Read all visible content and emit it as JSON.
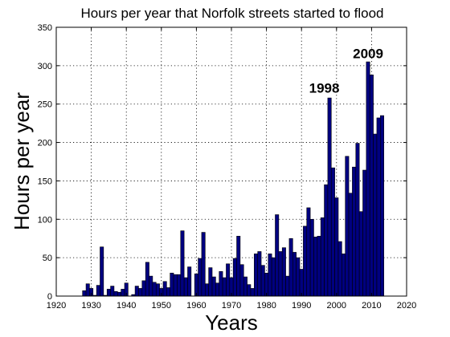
{
  "chart_data": {
    "type": "bar",
    "title": "Hours per year that Norfolk streets started to flood",
    "xlabel": "Years",
    "ylabel": "Hours per year",
    "xlim": [
      1920,
      2020
    ],
    "ylim": [
      0,
      350
    ],
    "xticks": [
      1920,
      1930,
      1940,
      1950,
      1960,
      1970,
      1980,
      1990,
      2000,
      2010,
      2020
    ],
    "yticks": [
      0,
      50,
      100,
      150,
      200,
      250,
      300,
      350
    ],
    "grid": true,
    "bar_color": "#000080",
    "annotations": [
      {
        "text": "1998",
        "x": 1996.5,
        "y": 265
      },
      {
        "text": "2009",
        "x": 2009,
        "y": 310
      }
    ],
    "x": [
      1928,
      1929,
      1930,
      1931,
      1932,
      1933,
      1934,
      1935,
      1936,
      1937,
      1938,
      1939,
      1940,
      1941,
      1942,
      1943,
      1944,
      1945,
      1946,
      1947,
      1948,
      1949,
      1950,
      1951,
      1952,
      1953,
      1954,
      1955,
      1956,
      1957,
      1958,
      1959,
      1960,
      1961,
      1962,
      1963,
      1964,
      1965,
      1966,
      1967,
      1968,
      1969,
      1970,
      1971,
      1972,
      1973,
      1974,
      1975,
      1976,
      1977,
      1978,
      1979,
      1980,
      1981,
      1982,
      1983,
      1984,
      1985,
      1986,
      1987,
      1988,
      1989,
      1990,
      1991,
      1992,
      1993,
      1994,
      1995,
      1996,
      1997,
      1998,
      1999,
      2000,
      2001,
      2002,
      2003,
      2004,
      2005,
      2006,
      2007,
      2008,
      2009,
      2010,
      2011,
      2012,
      2013
    ],
    "values": [
      7,
      16,
      10,
      1,
      14,
      64,
      1,
      9,
      13,
      6,
      5,
      9,
      17,
      0,
      2,
      13,
      10,
      20,
      44,
      26,
      18,
      16,
      10,
      19,
      11,
      30,
      28,
      28,
      85,
      24,
      38,
      0,
      29,
      49,
      83,
      16,
      37,
      25,
      17,
      32,
      24,
      42,
      24,
      49,
      78,
      41,
      25,
      15,
      10,
      55,
      58,
      40,
      30,
      55,
      50,
      106,
      58,
      63,
      26,
      75,
      57,
      50,
      35,
      91,
      115,
      100,
      77,
      78,
      102,
      145,
      258,
      167,
      128,
      71,
      55,
      182,
      134,
      168,
      199,
      110,
      164,
      305,
      288,
      211,
      232,
      235
    ]
  }
}
